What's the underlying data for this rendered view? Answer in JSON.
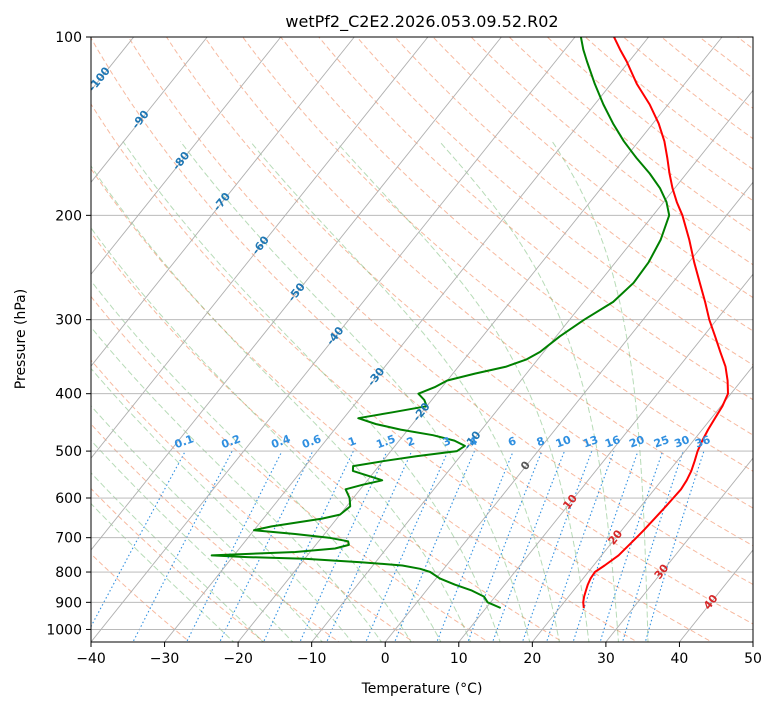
{
  "chart_data": {
    "type": "line",
    "subtype": "skew-t log-p",
    "title": "wetPf2_C2E2.2026.053.09.52.R02",
    "xlabel": "Temperature (°C)",
    "ylabel": "Pressure (hPa)",
    "xlim": [
      -40,
      50
    ],
    "ylim": [
      1050,
      100
    ],
    "y_scale": "log",
    "x_ticks": [
      -40,
      -30,
      -20,
      -10,
      0,
      10,
      20,
      30,
      40,
      50
    ],
    "y_ticks": [
      100,
      200,
      300,
      400,
      500,
      600,
      700,
      800,
      900,
      1000
    ],
    "grid": true,
    "colors": {
      "temperature": "#ff0000",
      "dewpoint": "#008000",
      "isotherm_grid": "#b0b0b0",
      "dry_adiabat": "#f08050",
      "moist_adiabat": "#60b060",
      "mixing_ratio": "#2f8fe0",
      "negative_isotherm_label": "#1f77b4",
      "positive_isotherm_label": "#d62728"
    },
    "isotherm_labels": [
      {
        "value": -100,
        "p": 118
      },
      {
        "value": -90,
        "p": 138
      },
      {
        "value": -80,
        "p": 162
      },
      {
        "value": -70,
        "p": 190
      },
      {
        "value": -60,
        "p": 225
      },
      {
        "value": -50,
        "p": 270
      },
      {
        "value": -40,
        "p": 320
      },
      {
        "value": -30,
        "p": 375
      },
      {
        "value": -20,
        "p": 430
      },
      {
        "value": -10,
        "p": 480
      },
      {
        "value": 0,
        "p": 530
      },
      {
        "value": 10,
        "p": 610
      },
      {
        "value": 20,
        "p": 700
      },
      {
        "value": 30,
        "p": 800
      },
      {
        "value": 40,
        "p": 900
      }
    ],
    "mixing_ratio_labels": [
      "0.1",
      "0.2",
      "0.4",
      "0.6",
      "1",
      "1.5",
      "2",
      "3",
      "4",
      "6",
      "8",
      "10",
      "13",
      "16",
      "20",
      "25",
      "30",
      "36"
    ],
    "mixing_ratio_values": [
      0.1,
      0.2,
      0.4,
      0.6,
      1,
      1.5,
      2,
      3,
      4,
      6,
      8,
      10,
      13,
      16,
      20,
      25,
      30,
      36
    ],
    "mixing_ratio_label_pressure": 500,
    "series": [
      {
        "id": "temperature",
        "p": [
          920,
          900,
          880,
          860,
          840,
          820,
          800,
          780,
          750,
          720,
          700,
          680,
          650,
          620,
          600,
          580,
          560,
          540,
          520,
          500,
          480,
          460,
          440,
          420,
          400,
          380,
          360,
          340,
          320,
          300,
          280,
          260,
          240,
          220,
          200,
          190,
          180,
          170,
          160,
          150,
          140,
          130,
          120,
          110,
          105,
          100
        ],
        "t": [
          23.3,
          22.6,
          22.1,
          21.7,
          21.3,
          21.0,
          20.9,
          21.5,
          22.3,
          22.6,
          22.8,
          23.0,
          23.2,
          23.4,
          23.5,
          23.6,
          23.4,
          23.0,
          22.4,
          21.7,
          21.2,
          20.8,
          20.5,
          20.2,
          19.6,
          18.1,
          16.3,
          14.0,
          11.6,
          9.0,
          6.5,
          3.7,
          0.7,
          -2.4,
          -6.0,
          -8.2,
          -10.3,
          -12.3,
          -14.3,
          -16.5,
          -19.2,
          -22.5,
          -26.5,
          -30.3,
          -32.5,
          -34.7
        ]
      },
      {
        "id": "dewpoint",
        "p": [
          920,
          900,
          880,
          860,
          840,
          820,
          800,
          790,
          780,
          770,
          760,
          755,
          750,
          740,
          730,
          720,
          710,
          700,
          690,
          680,
          670,
          660,
          650,
          640,
          620,
          600,
          580,
          570,
          560,
          550,
          540,
          530,
          520,
          510,
          500,
          490,
          480,
          470,
          460,
          450,
          440,
          430,
          420,
          410,
          400,
          390,
          380,
          370,
          360,
          350,
          340,
          330,
          320,
          300,
          280,
          260,
          240,
          220,
          200,
          190,
          180,
          170,
          160,
          150,
          140,
          130,
          120,
          110,
          105,
          100
        ],
        "t": [
          12.0,
          9.6,
          8.5,
          6.2,
          3.2,
          0.5,
          -1.5,
          -3.2,
          -6.0,
          -12.0,
          -20.0,
          -28.0,
          -33.0,
          -22.0,
          -17.0,
          -15.5,
          -16.0,
          -19.0,
          -24.0,
          -30.0,
          -28.0,
          -25.0,
          -22.0,
          -20.0,
          -19.5,
          -20.5,
          -22.0,
          -20.2,
          -18.0,
          -20.5,
          -23.0,
          -23.5,
          -20.0,
          -16.0,
          -11.0,
          -10.5,
          -12.5,
          -16.0,
          -21.0,
          -25.0,
          -28.0,
          -24.0,
          -20.0,
          -21.0,
          -22.5,
          -21.0,
          -20.0,
          -17.0,
          -13.5,
          -11.5,
          -10.5,
          -10.0,
          -9.5,
          -8.0,
          -6.0,
          -5.3,
          -5.5,
          -6.3,
          -7.8,
          -9.6,
          -12.0,
          -15.0,
          -18.5,
          -22.0,
          -25.4,
          -28.8,
          -32.2,
          -35.7,
          -37.5,
          -39.2
        ]
      }
    ]
  }
}
